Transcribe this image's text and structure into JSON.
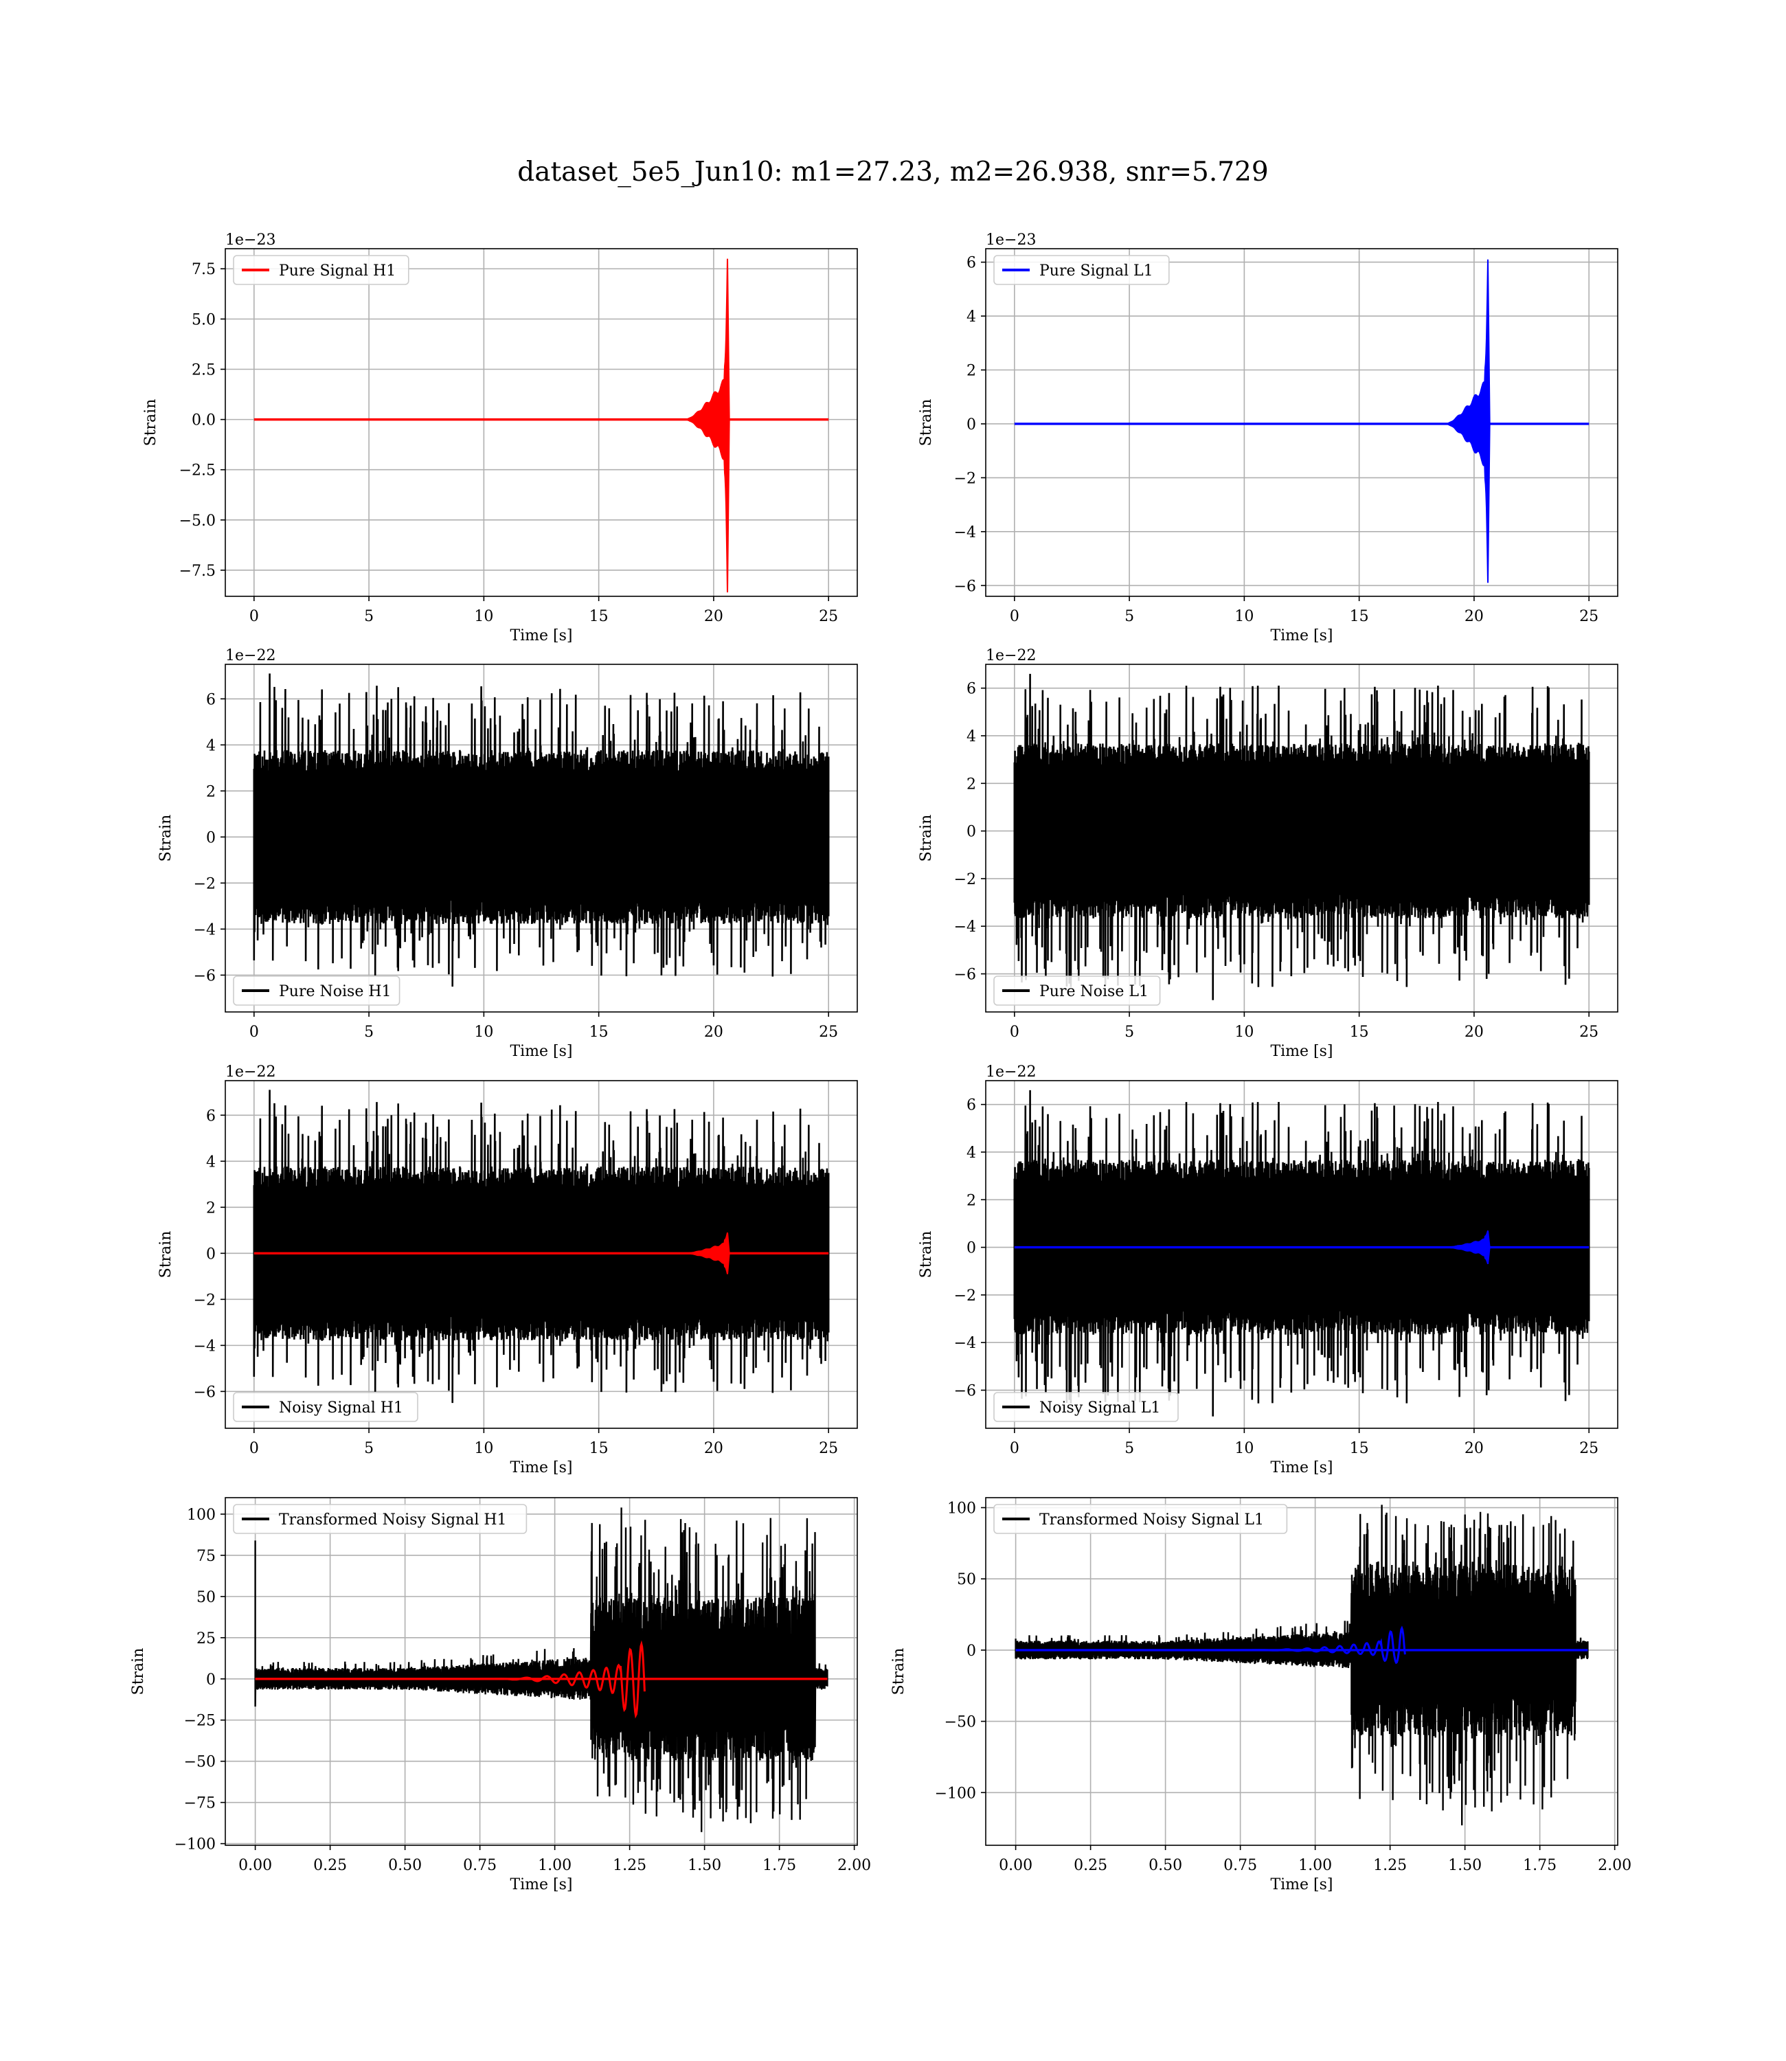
{
  "title": "dataset_5e5_Jun10: m1=27.23, m2=26.938, snr=5.729",
  "colors": {
    "h1_signal": "#ff0000",
    "l1_signal": "#0000ff",
    "noise": "#000000",
    "grid": "#b0b0b0"
  },
  "chart_data": [
    {
      "id": "pure-signal-h1",
      "type": "line",
      "xlabel": "Time [s]",
      "ylabel": "Strain",
      "offset_text": "1e−23",
      "xlim": [
        -1.25,
        26.25
      ],
      "ylim": [
        -8.8,
        8.5
      ],
      "xticks": [
        0,
        5,
        10,
        15,
        20,
        25
      ],
      "xtick_labels": [
        "0",
        "5",
        "10",
        "15",
        "20",
        "25"
      ],
      "yticks": [
        7.5,
        5.0,
        2.5,
        0.0,
        -2.5,
        -5.0,
        -7.5
      ],
      "ytick_labels": [
        "7.5",
        "5.0",
        "2.5",
        "0.0",
        "−2.5",
        "−5.0",
        "−7.5"
      ],
      "legend": "top-left",
      "grid": true,
      "series": [
        {
          "name": "Pure Signal H1",
          "color": "#ff0000",
          "kind": "chirp",
          "x_start": 0,
          "x_end": 25,
          "chirp_start": 18.8,
          "merger": 20.6,
          "env_pre": 2.3,
          "peak_max": 8.0,
          "peak_min": -8.6
        }
      ]
    },
    {
      "id": "pure-signal-l1",
      "type": "line",
      "xlabel": "Time [s]",
      "ylabel": "Strain",
      "offset_text": "1e−23",
      "xlim": [
        -1.25,
        26.25
      ],
      "ylim": [
        -6.4,
        6.5
      ],
      "xticks": [
        0,
        5,
        10,
        15,
        20,
        25
      ],
      "xtick_labels": [
        "0",
        "5",
        "10",
        "15",
        "20",
        "25"
      ],
      "yticks": [
        6,
        4,
        2,
        0,
        -2,
        -4,
        -6
      ],
      "ytick_labels": [
        "6",
        "4",
        "2",
        "0",
        "−2",
        "−4",
        "−6"
      ],
      "legend": "top-left",
      "grid": true,
      "series": [
        {
          "name": "Pure Signal L1",
          "color": "#0000ff",
          "kind": "chirp",
          "x_start": 0,
          "x_end": 25,
          "chirp_start": 18.8,
          "merger": 20.6,
          "env_pre": 1.8,
          "peak_max": 6.1,
          "peak_min": -5.9
        }
      ]
    },
    {
      "id": "pure-noise-h1",
      "type": "line",
      "xlabel": "Time [s]",
      "ylabel": "Strain",
      "offset_text": "1e−22",
      "xlim": [
        -1.25,
        26.25
      ],
      "ylim": [
        -7.6,
        7.5
      ],
      "xticks": [
        0,
        5,
        10,
        15,
        20,
        25
      ],
      "xtick_labels": [
        "0",
        "5",
        "10",
        "15",
        "20",
        "25"
      ],
      "yticks": [
        6,
        4,
        2,
        0,
        -2,
        -4,
        -6
      ],
      "ytick_labels": [
        "6",
        "4",
        "2",
        "0",
        "−2",
        "−4",
        "−6"
      ],
      "legend": "bottom-left",
      "grid": true,
      "series": [
        {
          "name": "Pure Noise H1",
          "color": "#000000",
          "kind": "noise",
          "x_start": 0,
          "x_end": 25,
          "band": 3.6,
          "spike_max": 7.1,
          "spike_min": -6.5,
          "seed": 11
        }
      ]
    },
    {
      "id": "pure-noise-l1",
      "type": "line",
      "xlabel": "Time [s]",
      "ylabel": "Strain",
      "offset_text": "1e−22",
      "xlim": [
        -1.25,
        26.25
      ],
      "ylim": [
        -7.6,
        7.0
      ],
      "xticks": [
        0,
        5,
        10,
        15,
        20,
        25
      ],
      "xtick_labels": [
        "0",
        "5",
        "10",
        "15",
        "20",
        "25"
      ],
      "yticks": [
        6,
        4,
        2,
        0,
        -2,
        -4,
        -6
      ],
      "ytick_labels": [
        "6",
        "4",
        "2",
        "0",
        "−2",
        "−4",
        "−6"
      ],
      "legend": "bottom-left",
      "grid": true,
      "series": [
        {
          "name": "Pure Noise L1",
          "color": "#000000",
          "kind": "noise",
          "x_start": 0,
          "x_end": 25,
          "band": 3.5,
          "spike_max": 6.6,
          "spike_min": -7.1,
          "seed": 23
        }
      ]
    },
    {
      "id": "noisy-signal-h1",
      "type": "line",
      "xlabel": "Time [s]",
      "ylabel": "Strain",
      "offset_text": "1e−22",
      "xlim": [
        -1.25,
        26.25
      ],
      "ylim": [
        -7.6,
        7.5
      ],
      "xticks": [
        0,
        5,
        10,
        15,
        20,
        25
      ],
      "xtick_labels": [
        "0",
        "5",
        "10",
        "15",
        "20",
        "25"
      ],
      "yticks": [
        6,
        4,
        2,
        0,
        -2,
        -4,
        -6
      ],
      "ytick_labels": [
        "6",
        "4",
        "2",
        "0",
        "−2",
        "−4",
        "−6"
      ],
      "legend": "bottom-left",
      "grid": true,
      "series": [
        {
          "name": "Noisy Signal H1",
          "color": "#000000",
          "kind": "noise",
          "x_start": 0,
          "x_end": 25,
          "band": 3.6,
          "spike_max": 7.1,
          "spike_min": -6.5,
          "seed": 11
        },
        {
          "name": "",
          "color": "#ff0000",
          "kind": "chirp",
          "x_start": 0,
          "x_end": 25,
          "chirp_start": 18.8,
          "merger": 20.6,
          "env_pre": 0.5,
          "peak_max": 0.9,
          "peak_min": -0.9
        }
      ]
    },
    {
      "id": "noisy-signal-l1",
      "type": "line",
      "xlabel": "Time [s]",
      "ylabel": "Strain",
      "offset_text": "1e−22",
      "xlim": [
        -1.25,
        26.25
      ],
      "ylim": [
        -7.6,
        7.0
      ],
      "xticks": [
        0,
        5,
        10,
        15,
        20,
        25
      ],
      "xtick_labels": [
        "0",
        "5",
        "10",
        "15",
        "20",
        "25"
      ],
      "yticks": [
        6,
        4,
        2,
        0,
        -2,
        -4,
        -6
      ],
      "ytick_labels": [
        "6",
        "4",
        "2",
        "0",
        "−2",
        "−4",
        "−6"
      ],
      "legend": "bottom-left",
      "grid": true,
      "series": [
        {
          "name": "Noisy Signal L1",
          "color": "#000000",
          "kind": "noise",
          "x_start": 0,
          "x_end": 25,
          "band": 3.5,
          "spike_max": 6.6,
          "spike_min": -7.1,
          "seed": 23
        },
        {
          "name": "",
          "color": "#0000ff",
          "kind": "chirp",
          "x_start": 0,
          "x_end": 25,
          "chirp_start": 18.8,
          "merger": 20.6,
          "env_pre": 0.4,
          "peak_max": 0.7,
          "peak_min": -0.7
        }
      ]
    },
    {
      "id": "transformed-noisy-signal-h1",
      "type": "line",
      "xlabel": "Time [s]",
      "ylabel": "Strain",
      "offset_text": "",
      "xlim": [
        -0.1,
        2.01
      ],
      "ylim": [
        -101,
        110
      ],
      "xticks": [
        0,
        0.25,
        0.5,
        0.75,
        1.0,
        1.25,
        1.5,
        1.75,
        2.0
      ],
      "xtick_labels": [
        "0.00",
        "0.25",
        "0.50",
        "0.75",
        "1.00",
        "1.25",
        "1.50",
        "1.75",
        "2.00"
      ],
      "yticks": [
        100,
        75,
        50,
        25,
        0,
        -25,
        -50,
        -75,
        -100
      ],
      "ytick_labels": [
        "100",
        "75",
        "50",
        "25",
        "0",
        "−25",
        "−50",
        "−75",
        "−100"
      ],
      "legend": "top-left",
      "grid": true,
      "series": [
        {
          "name": "Transformed Noisy Signal H1",
          "color": "#000000",
          "kind": "wnoise",
          "x_start": 0,
          "x_end": 1.91,
          "rise": 1.12,
          "fall": 1.87,
          "quiet_band": 6,
          "mid_band": 12,
          "loud_band": 45,
          "spike_max": 104,
          "spike_min": -93,
          "first_spike": 84,
          "seed": 41
        },
        {
          "name": "",
          "color": "#ff0000",
          "kind": "tchirp",
          "x_start": 0,
          "x_end": 1.91,
          "chirp_start": 0.75,
          "merger": 1.3,
          "peak_max": 22,
          "peak_min": -25
        }
      ]
    },
    {
      "id": "transformed-noisy-signal-l1",
      "type": "line",
      "xlabel": "Time [s]",
      "ylabel": "Strain",
      "offset_text": "",
      "xlim": [
        -0.1,
        2.01
      ],
      "ylim": [
        -137,
        107
      ],
      "xticks": [
        0,
        0.25,
        0.5,
        0.75,
        1.0,
        1.25,
        1.5,
        1.75,
        2.0
      ],
      "xtick_labels": [
        "0.00",
        "0.25",
        "0.50",
        "0.75",
        "1.00",
        "1.25",
        "1.50",
        "1.75",
        "2.00"
      ],
      "yticks": [
        100,
        50,
        0,
        -50,
        -100
      ],
      "ytick_labels": [
        "100",
        "50",
        "0",
        "−50",
        "−100"
      ],
      "legend": "top-left",
      "grid": true,
      "series": [
        {
          "name": "Transformed Noisy Signal L1",
          "color": "#000000",
          "kind": "wnoise",
          "x_start": 0,
          "x_end": 1.91,
          "rise": 1.12,
          "fall": 1.87,
          "quiet_band": 6,
          "mid_band": 12,
          "loud_band": 55,
          "spike_max": 102,
          "spike_min": -123,
          "first_spike": 8,
          "seed": 57
        },
        {
          "name": "",
          "color": "#0000ff",
          "kind": "tchirp",
          "x_start": 0,
          "x_end": 1.91,
          "chirp_start": 0.75,
          "merger": 1.3,
          "peak_max": 16,
          "peak_min": -10
        }
      ]
    }
  ]
}
